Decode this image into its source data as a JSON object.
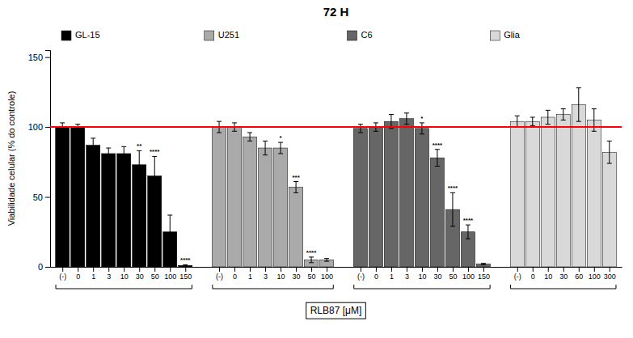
{
  "chart_data": {
    "type": "bar",
    "title": "72 H",
    "y_label": "Viabilidade celular (% do controle)",
    "x_label": "RLB87 [μM]",
    "ylim": [
      0,
      155
    ],
    "yticks": [
      0,
      50,
      100,
      150
    ],
    "reference_line": 100,
    "grid": false,
    "legend": "top",
    "series": [
      {
        "name": "GL-15",
        "color": "#000000",
        "categories": [
          "(-)",
          "0",
          "1",
          "3",
          "10",
          "30",
          "50",
          "100",
          "150"
        ],
        "values": [
          100,
          100,
          87,
          81,
          81,
          73,
          65,
          25,
          1
        ],
        "errors": [
          3,
          2,
          5,
          4,
          5,
          10,
          14,
          12,
          0.5
        ],
        "annotations": [
          null,
          null,
          null,
          null,
          null,
          "**",
          "****",
          null,
          "****"
        ]
      },
      {
        "name": "U251",
        "color": "#aaaaaa",
        "categories": [
          "(-)",
          "0",
          "1",
          "3",
          "10",
          "30",
          "50",
          "100"
        ],
        "values": [
          100,
          100,
          93,
          85,
          85,
          57,
          5,
          5
        ],
        "errors": [
          4,
          3,
          3,
          5,
          4,
          4,
          2,
          1
        ],
        "annotations": [
          null,
          null,
          null,
          null,
          "*",
          "***",
          "****",
          null
        ]
      },
      {
        "name": "C6",
        "color": "#666666",
        "categories": [
          "(-)",
          "0",
          "1",
          "3",
          "10",
          "30",
          "50",
          "100",
          "150"
        ],
        "values": [
          99,
          100,
          104,
          106,
          99,
          78,
          41,
          25,
          2
        ],
        "errors": [
          3,
          3,
          5,
          4,
          4,
          6,
          12,
          5,
          0.5
        ],
        "annotations": [
          null,
          null,
          null,
          null,
          "*",
          "****",
          "****",
          "****",
          null
        ]
      },
      {
        "name": "Glia",
        "color": "#d9d9d9",
        "categories": [
          "(-)",
          "0",
          "10",
          "30",
          "60",
          "100",
          "300"
        ],
        "values": [
          104,
          104,
          107,
          109,
          116,
          105,
          82
        ],
        "errors": [
          4,
          3,
          5,
          4,
          12,
          8,
          8
        ],
        "annotations": [
          null,
          null,
          null,
          null,
          null,
          null,
          null
        ]
      }
    ]
  }
}
